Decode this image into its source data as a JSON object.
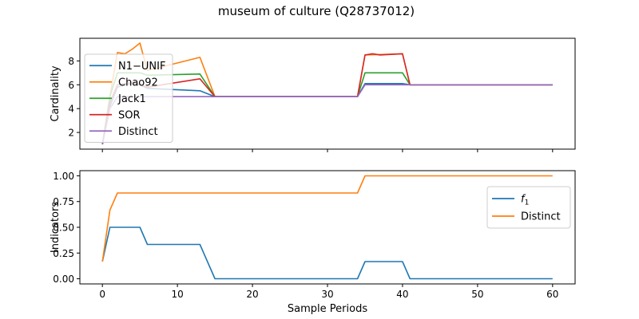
{
  "title": "museum of culture (Q28737012)",
  "chart_data": [
    {
      "type": "line",
      "ylabel": "Cardinality",
      "xlim": [
        -3.0,
        63.0
      ],
      "ylim": [
        0.6,
        9.9
      ],
      "xticks": [
        0,
        10,
        20,
        30,
        40,
        50,
        60
      ],
      "show_x_tick_labels": false,
      "yticks": [
        2,
        4,
        6,
        8
      ],
      "legend": "upper-left",
      "series": [
        {
          "name": "N1−UNIF",
          "color": "#1f77b4",
          "x": [
            0,
            1,
            2,
            3,
            4,
            5,
            6,
            13,
            15,
            34,
            35,
            40,
            41,
            60
          ],
          "values": [
            1.0,
            4.2,
            5.8,
            6.0,
            6.1,
            6.0,
            5.7,
            5.5,
            5.0,
            5.0,
            6.1,
            6.1,
            6.0,
            6.0
          ]
        },
        {
          "name": "Chao92",
          "color": "#ff7f0e",
          "x": [
            0,
            1,
            2,
            3,
            4,
            5,
            6,
            13,
            15,
            34,
            35,
            40,
            41,
            60
          ],
          "values": [
            1.0,
            5.0,
            8.7,
            8.6,
            9.0,
            9.5,
            7.2,
            8.3,
            5.0,
            5.0,
            8.5,
            8.6,
            6.0,
            6.0
          ]
        },
        {
          "name": "Jack1",
          "color": "#2ca02c",
          "x": [
            0,
            1,
            2,
            5,
            6,
            13,
            15,
            34,
            35,
            40,
            41,
            60
          ],
          "values": [
            1.0,
            5.0,
            7.0,
            7.0,
            6.8,
            6.9,
            5.0,
            5.0,
            7.0,
            7.0,
            6.0,
            6.0
          ]
        },
        {
          "name": "SOR",
          "color": "#d62728",
          "x": [
            0,
            1,
            2,
            3,
            4,
            5,
            6,
            13,
            15,
            34,
            35,
            36,
            37,
            40,
            41,
            60
          ],
          "values": [
            1.0,
            4.5,
            6.0,
            6.1,
            6.2,
            6.0,
            5.8,
            6.5,
            5.0,
            5.0,
            8.5,
            8.6,
            8.5,
            8.6,
            6.0,
            6.0
          ]
        },
        {
          "name": "Distinct",
          "color": "#9467bd",
          "x": [
            0,
            1,
            2,
            14,
            15,
            34,
            35,
            40,
            41,
            60
          ],
          "values": [
            1.0,
            4.0,
            5.0,
            5.0,
            5.0,
            5.0,
            6.0,
            6.0,
            6.0,
            6.0
          ]
        }
      ]
    },
    {
      "type": "line",
      "ylabel": "Indicators",
      "xlabel": "Sample Periods",
      "xlim": [
        -3.0,
        63.0
      ],
      "ylim": [
        -0.05,
        1.05
      ],
      "xticks": [
        0,
        10,
        20,
        30,
        40,
        50,
        60
      ],
      "show_x_tick_labels": true,
      "yticks": [
        0.0,
        0.25,
        0.5,
        0.75,
        1.0
      ],
      "ytick_labels": [
        "0.00",
        "0.25",
        "0.50",
        "0.75",
        "1.00"
      ],
      "legend": "upper-right",
      "series": [
        {
          "name": "f1",
          "display": "f",
          "sub": "1",
          "color": "#1f77b4",
          "x": [
            0,
            1,
            2,
            5,
            6,
            13,
            15,
            34,
            35,
            40,
            41,
            60
          ],
          "values": [
            0.1667,
            0.5,
            0.5,
            0.5,
            0.3333,
            0.3333,
            0.0,
            0.0,
            0.1667,
            0.1667,
            0.0,
            0.0
          ]
        },
        {
          "name": "Distinct",
          "color": "#ff7f0e",
          "x": [
            0,
            1,
            2,
            34,
            35,
            60
          ],
          "values": [
            0.1667,
            0.6667,
            0.8333,
            0.8333,
            1.0,
            1.0
          ]
        }
      ]
    }
  ]
}
